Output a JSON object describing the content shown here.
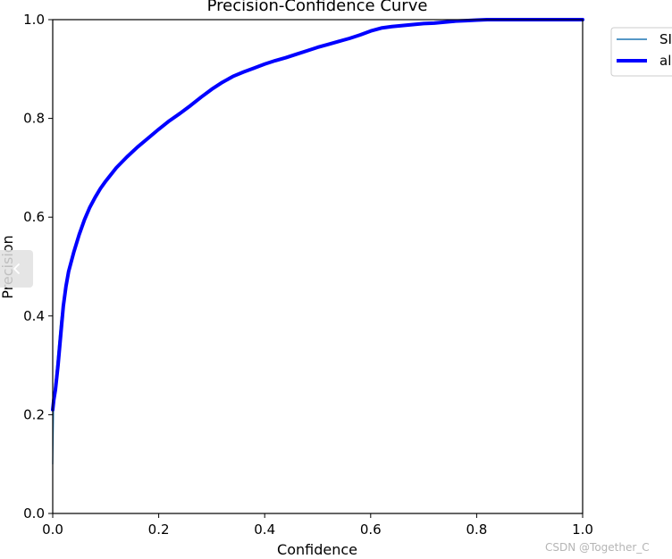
{
  "chart_data": {
    "type": "line",
    "title": "Precision-Confidence Curve",
    "xlabel": "Confidence",
    "ylabel": "Precision",
    "xlim": [
      0,
      1
    ],
    "ylim": [
      0,
      1
    ],
    "xticks": [
      "0.0",
      "0.2",
      "0.4",
      "0.6",
      "0.8",
      "1.0"
    ],
    "yticks": [
      "0.0",
      "0.2",
      "0.4",
      "0.6",
      "0.8",
      "1.0"
    ],
    "grid": false,
    "legend_position": "outside-top-right",
    "series": [
      {
        "name": "SI",
        "color": "#1f77b4",
        "line": "thin",
        "x": [
          0,
          0.002,
          0.005,
          0.01,
          0.015,
          0.02,
          0.025,
          0.03,
          0.04,
          0.05,
          0.06,
          0.07,
          0.08,
          0.09,
          0.1,
          0.12,
          0.14,
          0.16,
          0.18,
          0.2,
          0.22,
          0.24,
          0.26,
          0.28,
          0.3,
          0.32,
          0.34,
          0.36,
          0.38,
          0.4,
          0.42,
          0.44,
          0.46,
          0.48,
          0.5,
          0.52,
          0.54,
          0.56,
          0.58,
          0.6,
          0.62,
          0.64,
          0.66,
          0.68,
          0.7,
          0.72,
          0.74,
          0.76,
          0.78,
          0.8,
          0.82,
          0.84,
          0.86,
          0.9,
          0.95,
          1.0
        ],
        "y": [
          0.1,
          0.24,
          0.27,
          0.33,
          0.39,
          0.43,
          0.46,
          0.49,
          0.53,
          0.565,
          0.595,
          0.62,
          0.64,
          0.658,
          0.673,
          0.7,
          0.722,
          0.742,
          0.76,
          0.778,
          0.795,
          0.81,
          0.826,
          0.843,
          0.859,
          0.873,
          0.885,
          0.894,
          0.902,
          0.91,
          0.917,
          0.923,
          0.93,
          0.937,
          0.944,
          0.95,
          0.956,
          0.962,
          0.969,
          0.977,
          0.983,
          0.986,
          0.988,
          0.99,
          0.992,
          0.993,
          0.995,
          0.997,
          0.998,
          0.999,
          1.0,
          1.0,
          1.0,
          1.0,
          1.0,
          1.0
        ]
      },
      {
        "name": "al",
        "color": "#0000ff",
        "line": "thick",
        "x": [
          0,
          0.002,
          0.005,
          0.01,
          0.015,
          0.02,
          0.025,
          0.03,
          0.04,
          0.05,
          0.06,
          0.07,
          0.08,
          0.09,
          0.1,
          0.12,
          0.14,
          0.16,
          0.18,
          0.2,
          0.22,
          0.24,
          0.26,
          0.28,
          0.3,
          0.32,
          0.34,
          0.36,
          0.38,
          0.4,
          0.42,
          0.44,
          0.46,
          0.48,
          0.5,
          0.52,
          0.54,
          0.56,
          0.58,
          0.6,
          0.62,
          0.64,
          0.66,
          0.68,
          0.7,
          0.72,
          0.74,
          0.76,
          0.78,
          0.8,
          0.82,
          0.84,
          0.86,
          0.9,
          0.95,
          1.0
        ],
        "y": [
          0.21,
          0.23,
          0.25,
          0.3,
          0.36,
          0.42,
          0.46,
          0.49,
          0.53,
          0.565,
          0.595,
          0.62,
          0.64,
          0.658,
          0.673,
          0.7,
          0.722,
          0.742,
          0.76,
          0.778,
          0.795,
          0.81,
          0.826,
          0.843,
          0.859,
          0.873,
          0.885,
          0.894,
          0.902,
          0.91,
          0.917,
          0.923,
          0.93,
          0.937,
          0.944,
          0.95,
          0.956,
          0.962,
          0.969,
          0.977,
          0.983,
          0.986,
          0.988,
          0.99,
          0.992,
          0.993,
          0.995,
          0.997,
          0.998,
          0.999,
          1.0,
          1.0,
          1.0,
          1.0,
          1.0,
          1.0
        ]
      }
    ]
  },
  "watermark": "CSDN @Together_C",
  "nav": {
    "prev_icon": "chevron-left-icon"
  }
}
